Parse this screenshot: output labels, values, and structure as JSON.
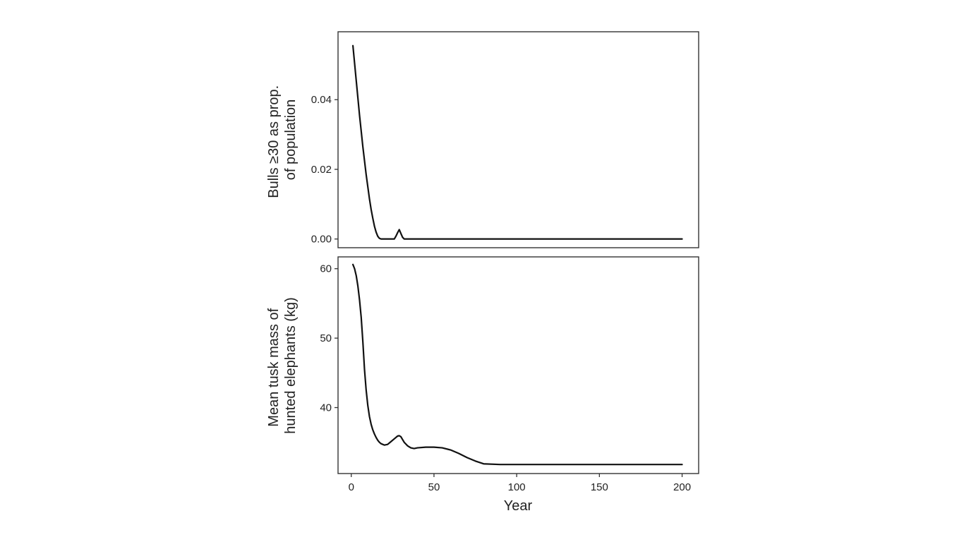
{
  "chart_data": {
    "type": "line",
    "shared_x": {
      "xlabel": "Year",
      "xlim": [
        -8,
        210
      ],
      "xticks": [
        0,
        50,
        100,
        150,
        200
      ],
      "xtick_labels": [
        "0",
        "50",
        "100",
        "150",
        "200"
      ]
    },
    "panels": [
      {
        "id": "top",
        "ylabel_lines": [
          "Bulls ≥30 as prop.",
          "of population"
        ],
        "ylim": [
          -0.0025,
          0.0595
        ],
        "yticks": [
          0.0,
          0.02,
          0.04
        ],
        "ytick_labels": [
          "0.00",
          "0.02",
          "0.04"
        ],
        "grid": false,
        "series": [
          {
            "x": [
              1,
              2,
              3,
              4,
              5,
              6,
              7,
              8,
              9,
              10,
              11,
              12,
              13,
              14,
              15,
              16,
              17,
              18,
              20,
              22,
              24,
              26,
              27,
              28,
              29,
              30,
              31,
              32,
              35,
              40,
              60,
              100,
              150,
              200
            ],
            "y": [
              0.0555,
              0.0505,
              0.0455,
              0.0405,
              0.0355,
              0.031,
              0.0265,
              0.0225,
              0.0185,
              0.015,
              0.0115,
              0.0085,
              0.006,
              0.0037,
              0.002,
              0.0008,
              0.0002,
              0.0,
              0.0,
              0.0,
              0.0,
              0.0,
              0.0008,
              0.0018,
              0.0027,
              0.0016,
              0.0005,
              0.0,
              0.0,
              0.0,
              0.0,
              0.0,
              0.0,
              0.0
            ]
          }
        ]
      },
      {
        "id": "bottom",
        "ylabel_lines": [
          "Mean tusk mass of",
          "hunted elephants (kg)"
        ],
        "ylim": [
          30.5,
          61.7
        ],
        "yticks": [
          40,
          50,
          60
        ],
        "ytick_labels": [
          "40",
          "50",
          "60"
        ],
        "grid": false,
        "series": [
          {
            "x": [
              1,
              2,
              3,
              4,
              5,
              6,
              7,
              8,
              9,
              10,
              11,
              12,
              13,
              14,
              15,
              16,
              17,
              18,
              20,
              22,
              24,
              26,
              28,
              29,
              30,
              31,
              32,
              34,
              36,
              38,
              40,
              45,
              50,
              55,
              60,
              65,
              70,
              75,
              80,
              90,
              100,
              150,
              200
            ],
            "y": [
              60.6,
              60.0,
              59.0,
              57.5,
              55.5,
              53.0,
              49.5,
              45.5,
              42.5,
              40.3,
              38.7,
              37.6,
              36.8,
              36.2,
              35.7,
              35.3,
              35.0,
              34.8,
              34.6,
              34.7,
              35.1,
              35.5,
              35.9,
              35.95,
              35.8,
              35.4,
              35.0,
              34.5,
              34.2,
              34.1,
              34.2,
              34.3,
              34.3,
              34.2,
              33.9,
              33.4,
              32.8,
              32.3,
              31.9,
              31.8,
              31.8,
              31.8,
              31.8
            ]
          }
        ]
      }
    ]
  }
}
